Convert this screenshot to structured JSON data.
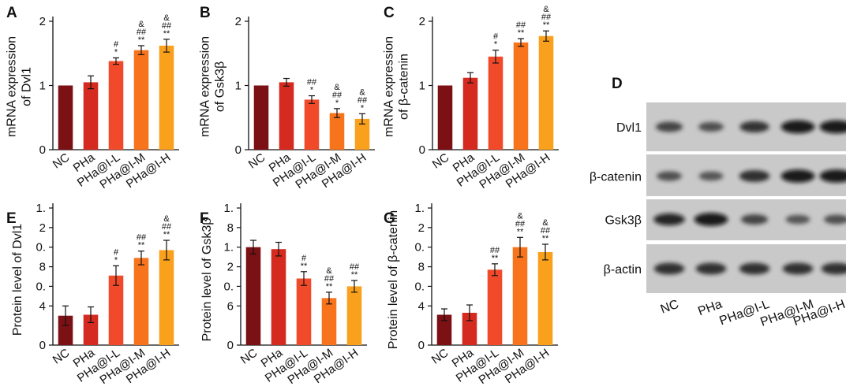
{
  "colors": {
    "bars": [
      "#7b1114",
      "#d42a1f",
      "#f04a2a",
      "#f7731c",
      "#f9a11c"
    ],
    "axis": "#111111",
    "error": "#111111"
  },
  "chart_data": [
    {
      "id": "A",
      "panel_label": "A",
      "type": "bar",
      "ylabel_lines": [
        "mRNA expression",
        "of Dvl1"
      ],
      "yticks": [
        {
          "v": 0,
          "t": "0"
        },
        {
          "v": 1,
          "t": "1"
        },
        {
          "v": 2,
          "t": "2"
        }
      ],
      "ylim": [
        0,
        2
      ],
      "categories": [
        "NC",
        "PHa",
        "PHa@I-L",
        "PHa@I-M",
        "PHa@I-H"
      ],
      "values": [
        1.0,
        1.05,
        1.38,
        1.55,
        1.62
      ],
      "errors": [
        0.0,
        0.1,
        0.05,
        0.07,
        0.1
      ],
      "sig": [
        [],
        [],
        [
          "#",
          "*"
        ],
        [
          "&",
          "##",
          "**"
        ],
        [
          "&",
          "##",
          "**"
        ]
      ]
    },
    {
      "id": "B",
      "panel_label": "B",
      "type": "bar",
      "ylabel_lines": [
        "mRNA expression",
        "of Gsk3β"
      ],
      "yticks": [
        {
          "v": 0,
          "t": "0"
        },
        {
          "v": 1,
          "t": "1"
        },
        {
          "v": 2,
          "t": "2"
        }
      ],
      "ylim": [
        0,
        2
      ],
      "categories": [
        "NC",
        "PHa",
        "PHa@I-L",
        "PHa@I-M",
        "PHa@I-H"
      ],
      "values": [
        1.0,
        1.05,
        0.78,
        0.57,
        0.48
      ],
      "errors": [
        0.0,
        0.06,
        0.06,
        0.07,
        0.08
      ],
      "sig": [
        [],
        [],
        [
          "##",
          "*"
        ],
        [
          "&",
          "##",
          "*"
        ],
        [
          "&",
          "##",
          "*"
        ]
      ]
    },
    {
      "id": "C",
      "panel_label": "C",
      "type": "bar",
      "ylabel_lines": [
        "mRNA expression",
        "of β-catenin"
      ],
      "yticks": [
        {
          "v": 0,
          "t": "0"
        },
        {
          "v": 1,
          "t": "1"
        },
        {
          "v": 2,
          "t": "2"
        }
      ],
      "ylim": [
        0,
        2
      ],
      "categories": [
        "NC",
        "PHa",
        "PHa@I-L",
        "PHa@I-M",
        "PHa@I-H"
      ],
      "values": [
        1.0,
        1.12,
        1.45,
        1.67,
        1.77
      ],
      "errors": [
        0.0,
        0.08,
        0.1,
        0.06,
        0.08
      ],
      "sig": [
        [],
        [],
        [
          "#",
          "*"
        ],
        [
          "##",
          "**"
        ],
        [
          "&",
          "##",
          "**"
        ]
      ]
    },
    {
      "id": "E",
      "panel_label": "E",
      "type": "bar",
      "ylabel_lines": [
        "Protein level of Dvl1"
      ],
      "yticks": [
        {
          "v": 0,
          "t": "0"
        },
        {
          "v": 0.4,
          "t": "4"
        },
        {
          "v": 0.6,
          "t": "0."
        },
        {
          "v": 0.8,
          "t": "8"
        },
        {
          "v": 1.0,
          "t": "0."
        },
        {
          "v": 1.2,
          "t": "2"
        },
        {
          "v": 1.4,
          "t": "1."
        }
      ],
      "ylim": [
        0,
        1.4
      ],
      "categories": [
        "NC",
        "PHa",
        "PHa@I-L",
        "PHa@I-M",
        "PHa@I-H"
      ],
      "values": [
        0.3,
        0.31,
        0.71,
        0.89,
        0.97
      ],
      "errors": [
        0.1,
        0.08,
        0.1,
        0.07,
        0.1
      ],
      "sig": [
        [],
        [],
        [
          "#",
          "*"
        ],
        [
          "##",
          "**"
        ],
        [
          "&",
          "##",
          "**"
        ]
      ]
    },
    {
      "id": "F",
      "panel_label": "F",
      "type": "bar",
      "ylabel_lines": [
        "Protein level of Gsk3β"
      ],
      "yticks": [
        {
          "v": 0,
          "t": "0"
        },
        {
          "v": 0.4,
          "t": "6"
        },
        {
          "v": 0.6,
          "t": "0."
        },
        {
          "v": 0.8,
          "t": "2"
        },
        {
          "v": 1.0,
          "t": "1."
        },
        {
          "v": 1.2,
          "t": "8"
        },
        {
          "v": 1.4,
          "t": "1."
        }
      ],
      "ylim": [
        0,
        1.4
      ],
      "categories": [
        "NC",
        "PHa",
        "PHa@I-L",
        "PHa@I-M",
        "PHa@I-H"
      ],
      "values": [
        1.0,
        0.98,
        0.68,
        0.48,
        0.6
      ],
      "errors": [
        0.07,
        0.07,
        0.07,
        0.06,
        0.06
      ],
      "sig": [
        [],
        [],
        [
          "#",
          "**"
        ],
        [
          "&",
          "##",
          "**"
        ],
        [
          "##",
          "**"
        ]
      ]
    },
    {
      "id": "G",
      "panel_label": "G",
      "type": "bar",
      "ylabel_lines": [
        "Protein level of β-catenin"
      ],
      "yticks": [
        {
          "v": 0,
          "t": "0"
        },
        {
          "v": 0.4,
          "t": "4"
        },
        {
          "v": 0.6,
          "t": "0."
        },
        {
          "v": 0.8,
          "t": "8"
        },
        {
          "v": 1.0,
          "t": "0."
        },
        {
          "v": 1.2,
          "t": "2"
        },
        {
          "v": 1.4,
          "t": "1."
        }
      ],
      "ylim": [
        0,
        1.4
      ],
      "categories": [
        "NC",
        "PHa",
        "PHa@I-L",
        "PHa@I-M",
        "PHa@I-H"
      ],
      "values": [
        0.31,
        0.33,
        0.77,
        1.0,
        0.95
      ],
      "errors": [
        0.06,
        0.08,
        0.06,
        0.1,
        0.08
      ],
      "sig": [
        [],
        [],
        [
          "##",
          "**"
        ],
        [
          "&",
          "##",
          "**"
        ],
        [
          "&",
          "##",
          "**"
        ]
      ]
    }
  ],
  "western_blot": {
    "panel_label": "D",
    "rows": [
      {
        "label": "Dvl1",
        "intensity": [
          0.55,
          0.45,
          0.7,
          0.95,
          0.95
        ]
      },
      {
        "label": "β-catenin",
        "intensity": [
          0.45,
          0.4,
          0.75,
          0.95,
          0.95
        ]
      },
      {
        "label": "Gsk3β",
        "intensity": [
          0.8,
          0.95,
          0.55,
          0.4,
          0.45
        ]
      },
      {
        "label": "β-actin",
        "intensity": [
          0.75,
          0.75,
          0.75,
          0.75,
          0.75
        ]
      }
    ],
    "lanes": [
      "NC",
      "PHa",
      "PHa@I-L",
      "PHa@I-M",
      "PHa@I-H"
    ]
  }
}
